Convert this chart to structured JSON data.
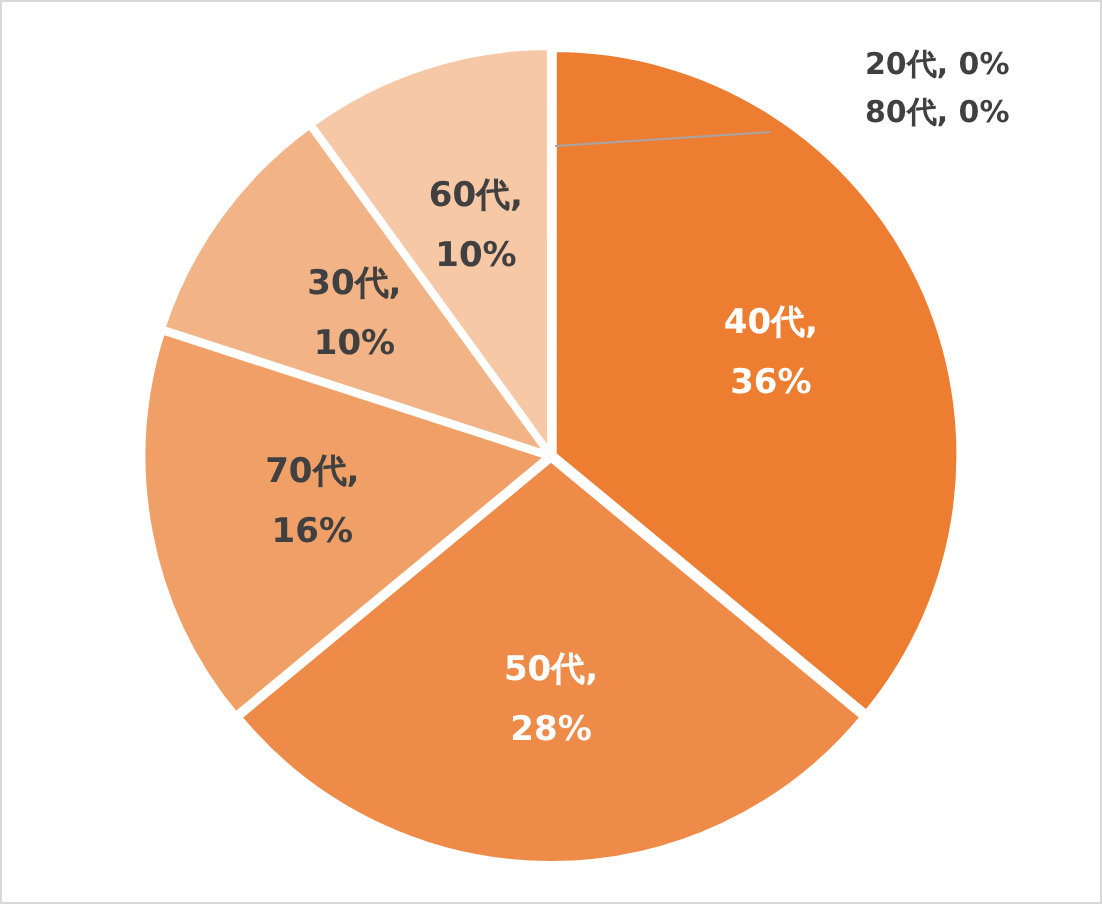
{
  "chart_data": {
    "type": "pie",
    "categories": [
      "40代",
      "50代",
      "70代",
      "30代",
      "60代",
      "20代",
      "80代"
    ],
    "values": [
      36,
      28,
      16,
      10,
      10,
      0,
      0
    ],
    "colors": [
      "#ed7d31",
      "#ef8b48",
      "#f0a066",
      "#f2b386",
      "#f7c8a6",
      "#f9d9c4",
      "#fbe6d8"
    ],
    "value_labels": [
      ", 36%",
      ", 28%",
      ", 16%",
      ", 10%",
      ", 10%",
      ", 0%",
      ", 0%"
    ],
    "legend": false
  }
}
